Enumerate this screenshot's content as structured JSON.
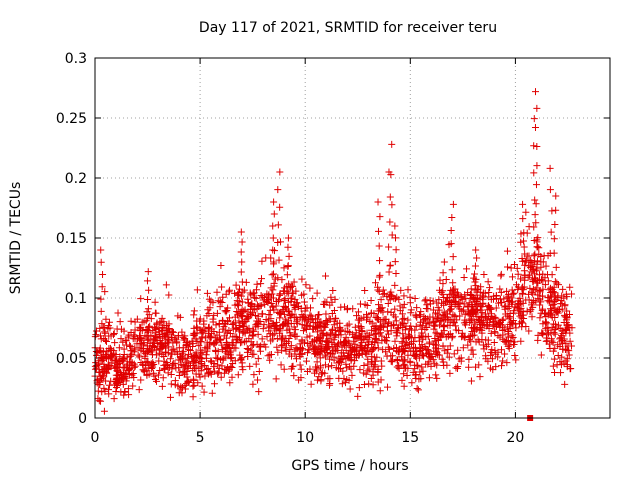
{
  "chart_data": {
    "type": "scatter",
    "title": "Day 117 of 2021, SRMTID for receiver teru",
    "xlabel": "GPS time / hours",
    "ylabel": "SRMTID / TECUs",
    "xlim": [
      0,
      24.5
    ],
    "ylim": [
      0,
      0.3
    ],
    "xticks": [
      0,
      5,
      10,
      15,
      20
    ],
    "xtick_labels": [
      "0",
      "5",
      "10",
      "15",
      "20"
    ],
    "yticks": [
      0,
      0.05,
      0.1,
      0.15,
      0.2,
      0.25,
      0.3
    ],
    "ytick_labels": [
      "0",
      "0.05",
      "0.1",
      "0.15",
      "0.2",
      "0.25",
      "0.3"
    ],
    "grid": true,
    "series": [
      {
        "name": "SRMTID",
        "color": "#e00000",
        "marker": "plus",
        "profile": [
          {
            "x": 0.0,
            "y": 0.045
          },
          {
            "x": 0.5,
            "y": 0.05
          },
          {
            "x": 1.0,
            "y": 0.04
          },
          {
            "x": 1.5,
            "y": 0.045
          },
          {
            "x": 2.0,
            "y": 0.055
          },
          {
            "x": 2.5,
            "y": 0.06
          },
          {
            "x": 3.0,
            "y": 0.06
          },
          {
            "x": 3.5,
            "y": 0.06
          },
          {
            "x": 4.0,
            "y": 0.045
          },
          {
            "x": 4.5,
            "y": 0.05
          },
          {
            "x": 5.0,
            "y": 0.055
          },
          {
            "x": 5.5,
            "y": 0.06
          },
          {
            "x": 6.0,
            "y": 0.065
          },
          {
            "x": 6.5,
            "y": 0.07
          },
          {
            "x": 7.0,
            "y": 0.08
          },
          {
            "x": 7.5,
            "y": 0.075
          },
          {
            "x": 8.0,
            "y": 0.08
          },
          {
            "x": 8.5,
            "y": 0.09
          },
          {
            "x": 9.0,
            "y": 0.085
          },
          {
            "x": 9.5,
            "y": 0.075
          },
          {
            "x": 10.0,
            "y": 0.075
          },
          {
            "x": 10.5,
            "y": 0.07
          },
          {
            "x": 11.0,
            "y": 0.065
          },
          {
            "x": 11.5,
            "y": 0.06
          },
          {
            "x": 12.0,
            "y": 0.055
          },
          {
            "x": 12.5,
            "y": 0.055
          },
          {
            "x": 13.0,
            "y": 0.06
          },
          {
            "x": 13.5,
            "y": 0.07
          },
          {
            "x": 14.0,
            "y": 0.08
          },
          {
            "x": 14.5,
            "y": 0.065
          },
          {
            "x": 15.0,
            "y": 0.06
          },
          {
            "x": 15.5,
            "y": 0.065
          },
          {
            "x": 16.0,
            "y": 0.07
          },
          {
            "x": 16.5,
            "y": 0.075
          },
          {
            "x": 17.0,
            "y": 0.08
          },
          {
            "x": 17.5,
            "y": 0.085
          },
          {
            "x": 18.0,
            "y": 0.08
          },
          {
            "x": 18.5,
            "y": 0.08
          },
          {
            "x": 19.0,
            "y": 0.075
          },
          {
            "x": 19.5,
            "y": 0.085
          },
          {
            "x": 20.0,
            "y": 0.095
          },
          {
            "x": 20.5,
            "y": 0.11
          },
          {
            "x": 21.0,
            "y": 0.115
          },
          {
            "x": 21.5,
            "y": 0.09
          },
          {
            "x": 22.0,
            "y": 0.075
          },
          {
            "x": 22.5,
            "y": 0.07
          },
          {
            "x": 22.7,
            "y": 0.065
          }
        ],
        "spikes": [
          {
            "x": 0.3,
            "y": 0.14
          },
          {
            "x": 2.5,
            "y": 0.122
          },
          {
            "x": 7.0,
            "y": 0.155
          },
          {
            "x": 8.5,
            "y": 0.18
          },
          {
            "x": 8.75,
            "y": 0.205
          },
          {
            "x": 9.2,
            "y": 0.15
          },
          {
            "x": 13.5,
            "y": 0.18
          },
          {
            "x": 14.0,
            "y": 0.205
          },
          {
            "x": 14.1,
            "y": 0.228
          },
          {
            "x": 14.3,
            "y": 0.16
          },
          {
            "x": 16.6,
            "y": 0.13
          },
          {
            "x": 17.0,
            "y": 0.178
          },
          {
            "x": 18.1,
            "y": 0.14
          },
          {
            "x": 20.4,
            "y": 0.178
          },
          {
            "x": 20.9,
            "y": 0.272
          },
          {
            "x": 21.0,
            "y": 0.258
          },
          {
            "x": 21.7,
            "y": 0.208
          },
          {
            "x": 21.9,
            "y": 0.185
          }
        ],
        "outlier_marker": {
          "x": 20.7,
          "y": 0.0
        }
      }
    ]
  }
}
